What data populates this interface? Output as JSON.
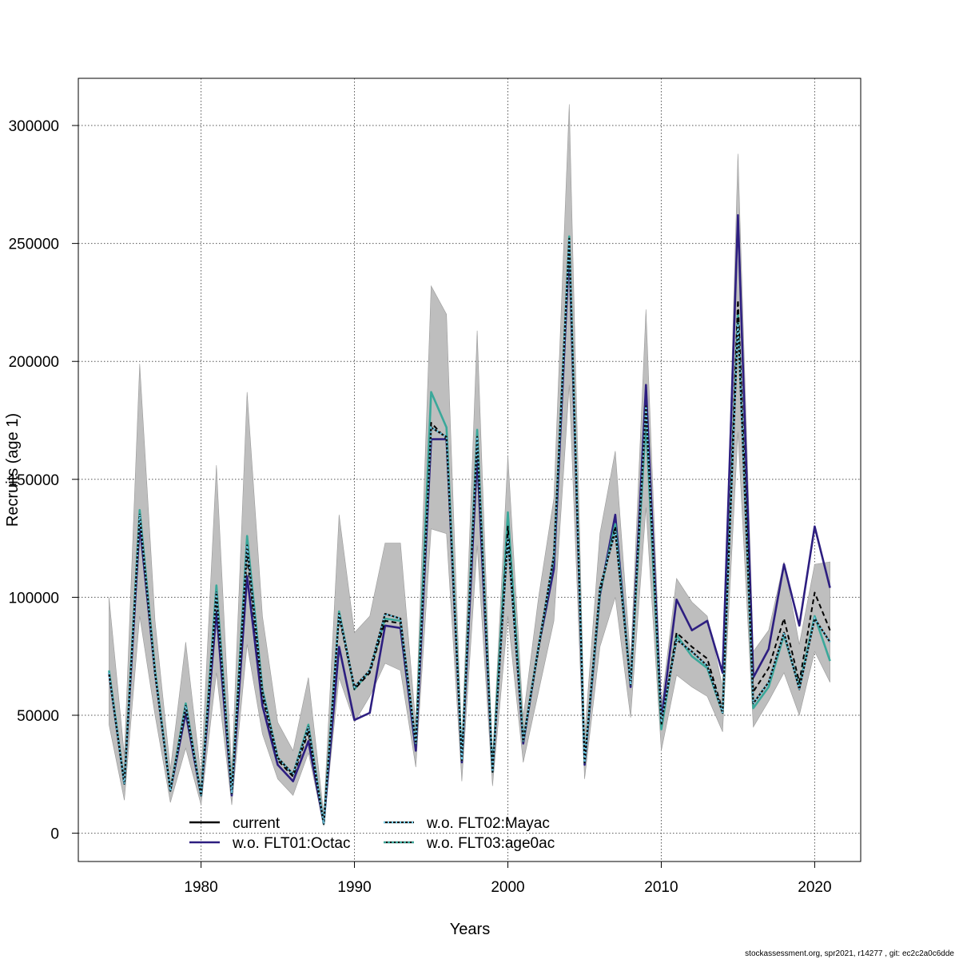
{
  "chart_data": {
    "type": "line",
    "title": "",
    "xlabel": "Years",
    "ylabel": "Recruits (age 1)",
    "xlim": [
      1972,
      2023
    ],
    "ylim": [
      -12000,
      320000
    ],
    "x_ticks": [
      1980,
      1990,
      2000,
      2010,
      2020
    ],
    "y_ticks": [
      0,
      50000,
      100000,
      150000,
      200000,
      250000,
      300000
    ],
    "grid": true,
    "legend_position": "bottom-left",
    "x": [
      1974,
      1975,
      1976,
      1977,
      1978,
      1979,
      1980,
      1981,
      1982,
      1983,
      1984,
      1985,
      1986,
      1987,
      1988,
      1989,
      1990,
      1991,
      1992,
      1993,
      1994,
      1995,
      1996,
      1997,
      1998,
      1999,
      2000,
      2001,
      2002,
      2003,
      2004,
      2005,
      2006,
      2007,
      2008,
      2009,
      2010,
      2011,
      2012,
      2013,
      2014,
      2015,
      2016,
      2017,
      2018,
      2019,
      2020,
      2021
    ],
    "ci_band": {
      "upper": [
        100000,
        33000,
        199000,
        90000,
        27000,
        81000,
        24000,
        156000,
        26000,
        187000,
        92000,
        47000,
        35000,
        66000,
        8000,
        135000,
        85000,
        92000,
        123000,
        123000,
        46000,
        232000,
        220000,
        37000,
        213000,
        30000,
        160000,
        49000,
        100000,
        142000,
        309000,
        41000,
        127000,
        162000,
        73000,
        222000,
        54000,
        108000,
        98000,
        92000,
        62000,
        288000,
        77000,
        86000,
        115000,
        80000,
        114000,
        115000
      ],
      "lower": [
        46000,
        14000,
        92000,
        50000,
        13000,
        36000,
        12000,
        68000,
        12000,
        80000,
        42000,
        23000,
        16000,
        34000,
        3000,
        66000,
        47000,
        58000,
        72000,
        69000,
        28000,
        129000,
        127000,
        22000,
        122000,
        20000,
        92000,
        30000,
        60000,
        90000,
        190000,
        23000,
        79000,
        100000,
        49000,
        138000,
        35000,
        67000,
        62000,
        58000,
        43000,
        170000,
        45000,
        56000,
        68000,
        50000,
        77000,
        64000
      ]
    },
    "series": [
      {
        "name": "current",
        "color": "#000000",
        "style": "solid",
        "values": [
          68000,
          21000,
          134000,
          68000,
          18000,
          53000,
          16000,
          100000,
          17000,
          118000,
          58000,
          31000,
          24000,
          43000,
          4000,
          92000,
          61000,
          68000,
          90000,
          89000,
          38000,
          174000,
          167000,
          31000,
          166000,
          26000,
          130000,
          39000,
          78000,
          117000,
          250000,
          30000,
          102000,
          130000,
          63000,
          180000,
          46000,
          85000,
          79000,
          74000,
          52000,
          226000,
          60000,
          70000,
          91000,
          64000,
          102000,
          86000
        ]
      },
      {
        "name": "w.o. FLT01:Octac",
        "color": "#2d1e80",
        "style": "solid",
        "values": [
          68000,
          21000,
          131000,
          68000,
          18000,
          51000,
          16000,
          94000,
          16000,
          109000,
          54000,
          29000,
          22000,
          39000,
          4000,
          79000,
          48000,
          51000,
          88000,
          87000,
          35000,
          167000,
          167000,
          30000,
          160000,
          26000,
          127000,
          38000,
          79000,
          112000,
          248000,
          29000,
          101000,
          135000,
          62000,
          190000,
          48000,
          99000,
          86000,
          90000,
          68000,
          262000,
          66000,
          78000,
          114000,
          88000,
          130000,
          104000
        ]
      },
      {
        "name": "w.o. FLT02:Mayac",
        "color": "#6fd0ee",
        "style": "dotted",
        "values": [
          68000,
          21000,
          135000,
          68000,
          18000,
          54000,
          16000,
          102000,
          17000,
          122000,
          60000,
          32000,
          25000,
          45000,
          4000,
          93000,
          62000,
          69000,
          93000,
          91000,
          38000,
          172000,
          168000,
          31000,
          168000,
          26000,
          125000,
          39000,
          79000,
          118000,
          252000,
          30000,
          104000,
          128000,
          63000,
          181000,
          47000,
          82000,
          77000,
          71000,
          51000,
          216000,
          55000,
          64000,
          85000,
          61000,
          91000,
          81000
        ]
      },
      {
        "name": "w.o. FLT03:age0ac",
        "color": "#3aa89a",
        "style": "solid",
        "values": [
          69000,
          21000,
          137000,
          69000,
          18000,
          55000,
          16000,
          105000,
          17000,
          126000,
          61000,
          32000,
          25000,
          46000,
          4000,
          94000,
          61000,
          69000,
          91000,
          90000,
          38000,
          187000,
          172000,
          31000,
          171000,
          26000,
          136000,
          39000,
          79000,
          117000,
          253000,
          30000,
          102000,
          131000,
          63000,
          175000,
          44000,
          84000,
          75000,
          70000,
          51000,
          221000,
          53000,
          62000,
          84000,
          62000,
          92000,
          73000
        ]
      }
    ]
  },
  "footer": "stockassessment.org, spr2021, r14277 , git: ec2c2a0c6dde"
}
